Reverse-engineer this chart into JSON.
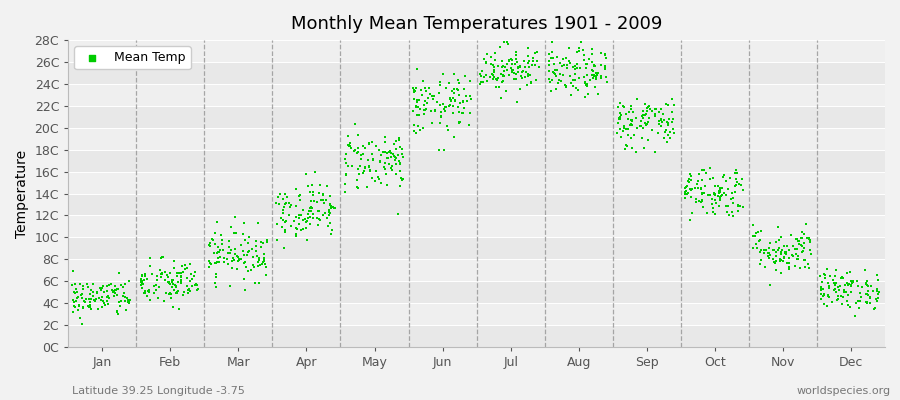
{
  "title": "Monthly Mean Temperatures 1901 - 2009",
  "ylabel": "Temperature",
  "xlabel_bottom_left": "Latitude 39.25 Longitude -3.75",
  "xlabel_bottom_right": "worldspecies.org",
  "legend_label": "Mean Temp",
  "dot_color": "#00cc00",
  "bg_color": "#f2f2f2",
  "plot_bg_color": "#f2f2f2",
  "dashed_line_color": "#999999",
  "ytick_labels": [
    "0C",
    "2C",
    "4C",
    "6C",
    "8C",
    "10C",
    "12C",
    "14C",
    "16C",
    "18C",
    "20C",
    "22C",
    "24C",
    "26C",
    "28C"
  ],
  "ytick_values": [
    0,
    2,
    4,
    6,
    8,
    10,
    12,
    14,
    16,
    18,
    20,
    22,
    24,
    26,
    28
  ],
  "monthly_means": [
    4.5,
    5.8,
    8.5,
    12.5,
    17.0,
    22.0,
    25.5,
    25.0,
    20.5,
    14.2,
    8.8,
    5.2
  ],
  "monthly_stds": [
    0.9,
    1.1,
    1.2,
    1.3,
    1.4,
    1.4,
    1.1,
    1.1,
    1.2,
    1.2,
    1.1,
    0.9
  ],
  "months": [
    "Jan",
    "Feb",
    "Mar",
    "Apr",
    "May",
    "Jun",
    "Jul",
    "Aug",
    "Sep",
    "Oct",
    "Nov",
    "Dec"
  ],
  "n_years": 109,
  "seed": 42,
  "marker_size": 4,
  "fig_width": 9.0,
  "fig_height": 4.0,
  "dpi": 100
}
